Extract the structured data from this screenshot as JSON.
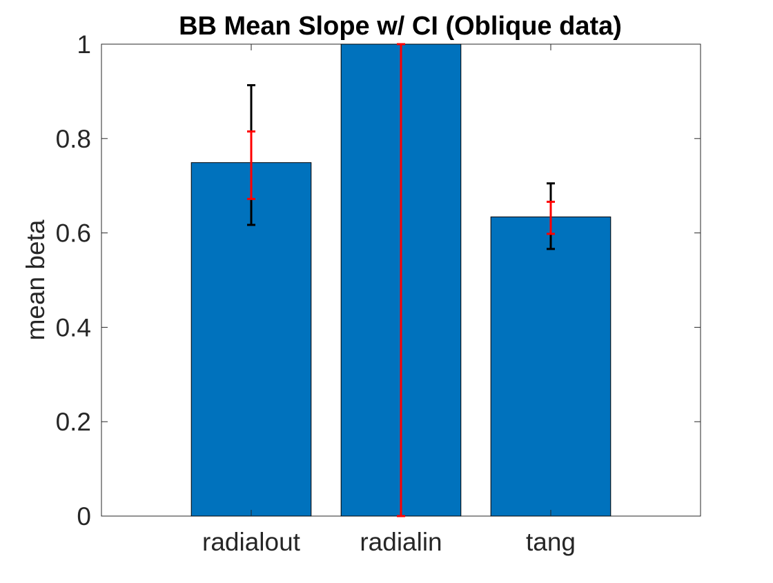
{
  "chart_data": {
    "type": "bar",
    "title": "BB Mean Slope w/ CI (Oblique data)",
    "xlabel": "",
    "ylabel": "mean beta",
    "categories": [
      "radialout",
      "radialin",
      "tang"
    ],
    "values": [
      0.749,
      1.0,
      0.634
    ],
    "ylim": [
      0,
      1
    ],
    "yticks": [
      "0",
      "0.2",
      "0.4",
      "0.6",
      "0.8",
      "1"
    ],
    "grid": false,
    "bar_color": "#0072BD",
    "error_bars": [
      {
        "name": "outer",
        "color": "#000000",
        "lower": [
          0.617,
          null,
          0.566
        ],
        "upper": [
          0.913,
          null,
          0.705
        ]
      },
      {
        "name": "inner",
        "color": "#FF0000",
        "lower": [
          0.672,
          0.0,
          0.598
        ],
        "upper": [
          0.815,
          1.0,
          0.666
        ]
      }
    ]
  }
}
